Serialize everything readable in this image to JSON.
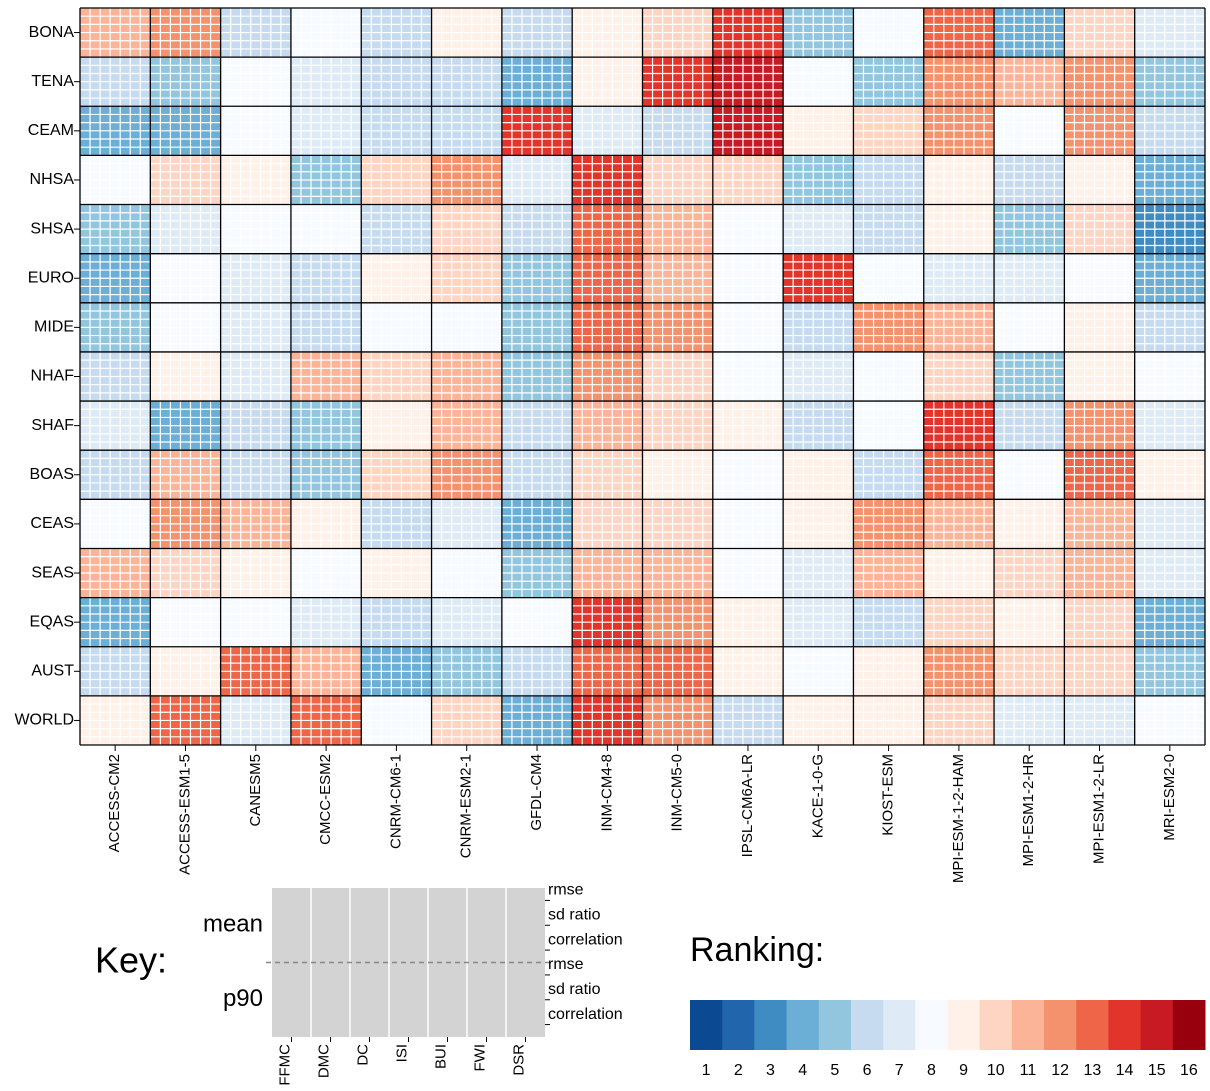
{
  "chart_data": {
    "type": "heatmap",
    "x": [
      "ACCESS-CM2",
      "ACCESS-ESM1-5",
      "CANESM5",
      "CMCC-ESM2",
      "CNRM-CM6-1",
      "CNRM-ESM2-1",
      "GFDL-CM4",
      "INM-CM4-8",
      "INM-CM5-0",
      "IPSL-CM6A-LR",
      "KACE-1-0-G",
      "KIOST-ESM",
      "MPI-ESM-1-2-HAM",
      "MPI-ESM1-2-HR",
      "MPI-ESM1-2-LR",
      "MRI-ESM2-0"
    ],
    "y": [
      "BONA",
      "TENA",
      "CEAM",
      "NHSA",
      "SHSA",
      "EURO",
      "MIDE",
      "NHAF",
      "SHAF",
      "BOAS",
      "CEAS",
      "SEAS",
      "EQAS",
      "AUST",
      "WORLD"
    ],
    "values": [
      [
        11,
        12,
        6,
        8,
        6,
        9,
        6,
        9,
        10,
        14,
        5,
        8,
        13,
        4,
        10,
        7
      ],
      [
        6,
        5,
        8,
        7,
        6,
        6,
        4,
        9,
        14,
        15,
        8,
        5,
        12,
        11,
        12,
        5
      ],
      [
        4,
        4,
        8,
        7,
        6,
        6,
        14,
        7,
        6,
        15,
        9,
        10,
        12,
        8,
        12,
        6
      ],
      [
        8,
        10,
        9,
        5,
        10,
        12,
        7,
        14,
        10,
        10,
        5,
        6,
        9,
        6,
        9,
        4
      ],
      [
        5,
        7,
        8,
        8,
        6,
        10,
        6,
        13,
        11,
        8,
        7,
        6,
        9,
        5,
        10,
        3
      ],
      [
        4,
        8,
        7,
        6,
        9,
        10,
        5,
        13,
        11,
        8,
        14,
        8,
        7,
        7,
        8,
        4
      ],
      [
        5,
        8,
        7,
        6,
        8,
        8,
        5,
        13,
        12,
        8,
        6,
        12,
        11,
        8,
        9,
        6
      ],
      [
        6,
        9,
        7,
        11,
        10,
        11,
        5,
        12,
        10,
        8,
        7,
        8,
        10,
        5,
        9,
        8
      ],
      [
        7,
        4,
        6,
        5,
        9,
        11,
        6,
        11,
        10,
        9,
        6,
        8,
        14,
        6,
        12,
        7
      ],
      [
        6,
        11,
        6,
        5,
        10,
        12,
        6,
        10,
        9,
        8,
        9,
        6,
        13,
        8,
        13,
        9
      ],
      [
        8,
        12,
        11,
        9,
        6,
        7,
        4,
        10,
        10,
        8,
        9,
        12,
        11,
        9,
        11,
        7
      ],
      [
        11,
        10,
        9,
        8,
        9,
        8,
        5,
        11,
        11,
        8,
        7,
        11,
        9,
        10,
        11,
        7
      ],
      [
        4,
        8,
        8,
        7,
        6,
        7,
        8,
        14,
        12,
        9,
        7,
        6,
        10,
        9,
        10,
        4
      ],
      [
        6,
        9,
        13,
        11,
        4,
        5,
        6,
        13,
        13,
        9,
        8,
        9,
        12,
        10,
        10,
        5
      ],
      [
        9,
        13,
        7,
        13,
        8,
        10,
        4,
        14,
        12,
        6,
        9,
        9,
        10,
        7,
        7,
        8
      ]
    ],
    "colors": [
      "#0b4a92",
      "#2166ac",
      "#3f8cc2",
      "#6baed6",
      "#92c5de",
      "#c6dbef",
      "#deebf7",
      "#f7fbff",
      "#fff0e8",
      "#fdd5c2",
      "#fcb499",
      "#f4926e",
      "#ef6548",
      "#e3342c",
      "#c81a23",
      "#99000d"
    ],
    "legend": {
      "title": "Ranking:",
      "ticks": [
        1,
        2,
        3,
        4,
        5,
        6,
        7,
        8,
        9,
        10,
        11,
        12,
        13,
        14,
        15,
        16
      ]
    },
    "key": {
      "title": "Key:",
      "groups": [
        "mean",
        "p90"
      ],
      "metrics": [
        "rmse",
        "sd ratio",
        "correlation"
      ],
      "indices": [
        "FFMC",
        "DMC",
        "DC",
        "ISI",
        "BUI",
        "FWI",
        "DSR"
      ]
    }
  }
}
